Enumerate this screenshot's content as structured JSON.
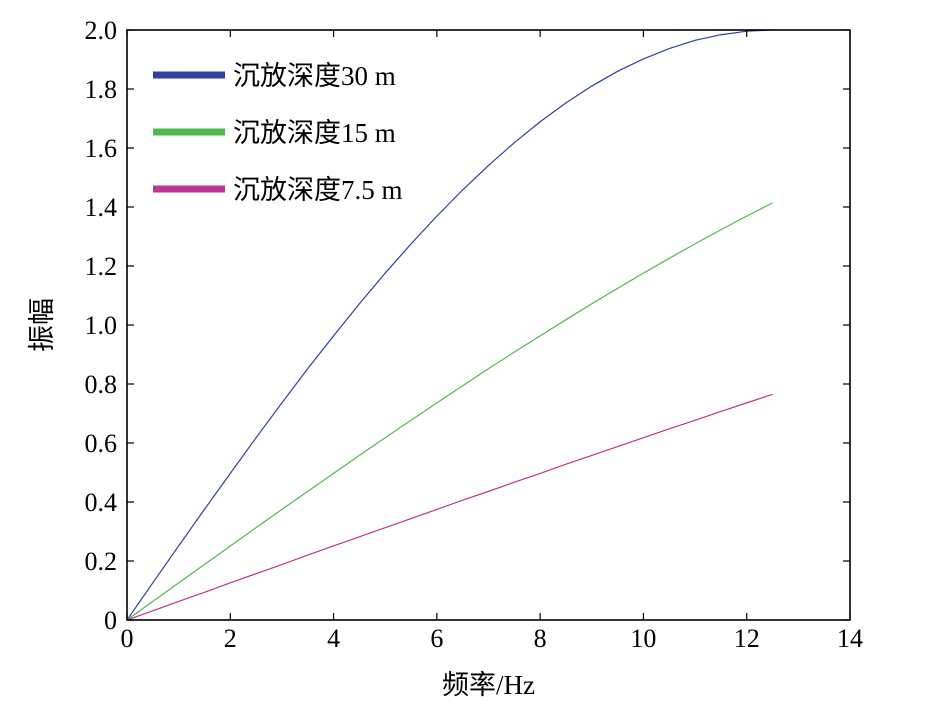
{
  "chart_data": {
    "type": "line",
    "xlabel": "频率/Hz",
    "ylabel": "振幅",
    "xlim": [
      0,
      14
    ],
    "ylim": [
      0,
      2
    ],
    "xtick_labels": [
      "0",
      "2",
      "4",
      "6",
      "8",
      "10",
      "12",
      "14"
    ],
    "ytick_labels": [
      "0",
      "0.2",
      "0.4",
      "0.6",
      "0.8",
      "1.0",
      "1.2",
      "1.4",
      "1.6",
      "1.8",
      "2.0"
    ],
    "grid": false,
    "legend_position": "top-left",
    "x": [
      0,
      0.5,
      1,
      1.5,
      2,
      2.5,
      3,
      3.5,
      4,
      4.5,
      5,
      5.5,
      6,
      6.5,
      7,
      7.5,
      8,
      8.5,
      9,
      9.5,
      10,
      10.5,
      11,
      11.5,
      12,
      12.5
    ],
    "series": [
      {
        "name": "沉放深度30 m",
        "color": "#2f40a0",
        "values": [
          0,
          0.126,
          0.251,
          0.375,
          0.497,
          0.618,
          0.736,
          0.852,
          0.963,
          1.072,
          1.176,
          1.275,
          1.369,
          1.458,
          1.541,
          1.618,
          1.689,
          1.753,
          1.81,
          1.86,
          1.902,
          1.937,
          1.965,
          1.984,
          1.996,
          2.0
        ]
      },
      {
        "name": "沉放深度15 m",
        "color": "#50b94b",
        "values": [
          0,
          0.063,
          0.126,
          0.188,
          0.251,
          0.313,
          0.375,
          0.436,
          0.497,
          0.558,
          0.618,
          0.677,
          0.736,
          0.794,
          0.852,
          0.908,
          0.963,
          1.018,
          1.072,
          1.124,
          1.176,
          1.226,
          1.275,
          1.323,
          1.369,
          1.414
        ]
      },
      {
        "name": "沉放深度7.5 m",
        "color": "#b93791",
        "values": [
          0,
          0.031,
          0.063,
          0.094,
          0.126,
          0.157,
          0.188,
          0.22,
          0.251,
          0.282,
          0.313,
          0.344,
          0.375,
          0.406,
          0.436,
          0.467,
          0.497,
          0.528,
          0.558,
          0.588,
          0.618,
          0.648,
          0.677,
          0.707,
          0.736,
          0.765
        ]
      }
    ]
  }
}
